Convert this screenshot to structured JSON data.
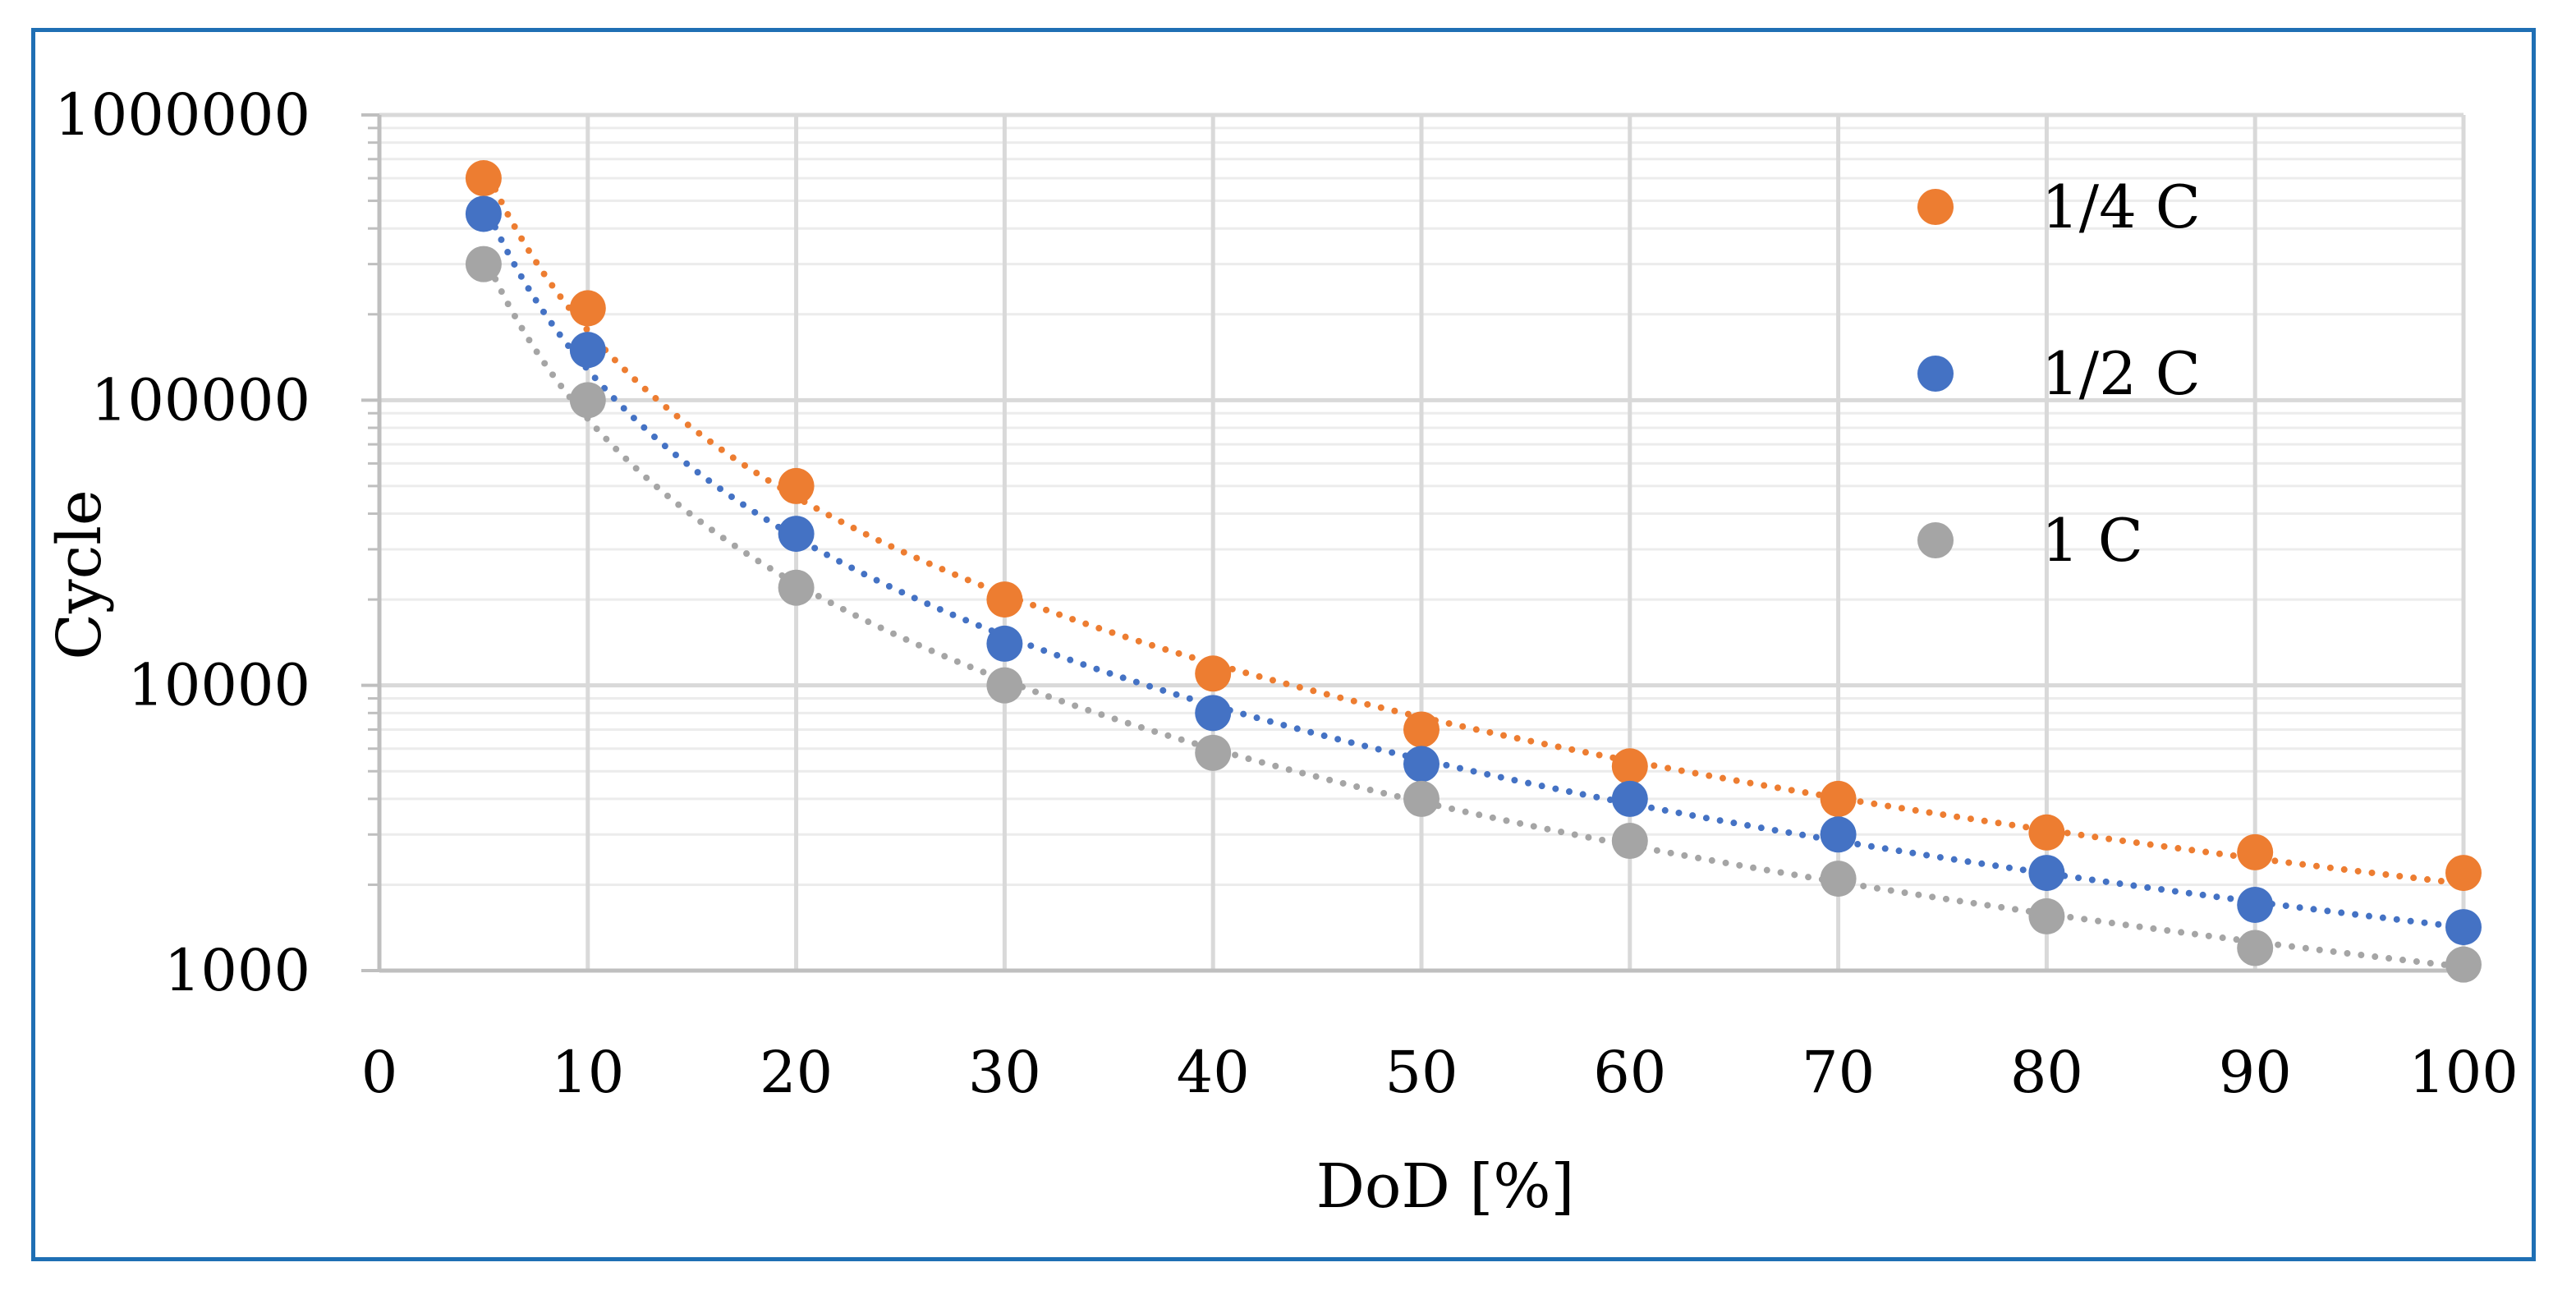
{
  "chart_data": {
    "type": "scatter",
    "title": "",
    "xlabel": "DoD [%]",
    "ylabel": "Cycle",
    "xlim": [
      0,
      100
    ],
    "ylim": [
      1000,
      1000000
    ],
    "yscale": "log",
    "grid": true,
    "legend_position": "top-right",
    "x_ticks": [
      "0",
      "10",
      "20",
      "30",
      "40",
      "50",
      "60",
      "70",
      "80",
      "90",
      "100"
    ],
    "y_ticks": [
      "1000",
      "10000",
      "100000",
      "1000000"
    ],
    "trendline": "power, dotted",
    "x": [
      5,
      10,
      20,
      30,
      40,
      50,
      60,
      70,
      80,
      90,
      100
    ],
    "series": [
      {
        "name": "1/4 C",
        "color": "#ed7d31",
        "values": [
          600000,
          210000,
          50000,
          20000,
          11000,
          7000,
          5200,
          4000,
          3050,
          2600,
          2200
        ]
      },
      {
        "name": "1/2 C",
        "color": "#4472c4",
        "values": [
          450000,
          150000,
          34000,
          14000,
          8000,
          5300,
          4000,
          3000,
          2200,
          1700,
          1420
        ]
      },
      {
        "name": "1 C",
        "color": "#a5a5a5",
        "values": [
          300000,
          100000,
          22000,
          10000,
          5800,
          4000,
          2850,
          2100,
          1550,
          1200,
          1050
        ]
      }
    ]
  }
}
